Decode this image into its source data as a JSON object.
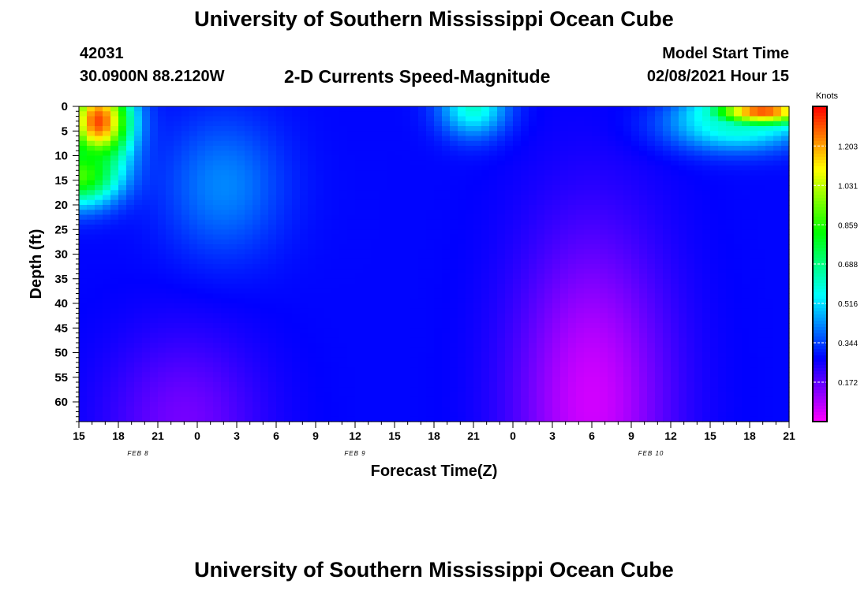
{
  "header": {
    "title": "University of Southern Mississippi Ocean Cube",
    "station": "42031",
    "coords": "30.0900N 88.2120W",
    "subtitle": "2-D Currents Speed-Magnitude",
    "model_start_label": "Model Start Time",
    "model_start_value": "02/08/2021 Hour 15"
  },
  "footer": {
    "title": "University of Southern Mississippi Ocean Cube"
  },
  "chart_data": {
    "type": "heatmap",
    "xlabel": "Forecast Time(Z)",
    "ylabel": "Depth (ft)",
    "x_tick_labels": [
      "15",
      "18",
      "21",
      "0",
      "3",
      "6",
      "9",
      "12",
      "15",
      "18",
      "21",
      "0",
      "3",
      "6",
      "9",
      "12",
      "15",
      "18",
      "21"
    ],
    "date_labels": [
      {
        "label": "FEB 8",
        "tick_index": 1.5
      },
      {
        "label": "FEB 9",
        "tick_index": 7
      },
      {
        "label": "FEB 10",
        "tick_index": 14.5
      }
    ],
    "x_range_hours": [
      0,
      54
    ],
    "y_ticks": [
      0,
      5,
      10,
      15,
      20,
      25,
      30,
      35,
      40,
      45,
      50,
      55,
      60
    ],
    "ylim": [
      0,
      64
    ],
    "y_inverted": true,
    "colorbar": {
      "title": "Knots",
      "tick_labels": [
        "1.203",
        "1.031",
        "0.859",
        "0.688",
        "0.516",
        "0.344",
        "0.172"
      ],
      "tick_values": [
        1.203,
        1.031,
        0.859,
        0.688,
        0.516,
        0.344,
        0.172
      ],
      "range": [
        0.0,
        1.376
      ],
      "colors": [
        "#ff00ff",
        "#0000ff",
        "#00ffff",
        "#00ff00",
        "#ffff00",
        "#ff0000"
      ]
    },
    "features": [
      {
        "hour": 1.5,
        "depth": 3,
        "speed": 1.3,
        "sx": 2.4,
        "sd": 8
      },
      {
        "hour": 0,
        "depth": 14,
        "speed": 0.9,
        "sx": 3,
        "sd": 6
      },
      {
        "hour": 11,
        "depth": 16,
        "speed": 0.42,
        "sx": 4.5,
        "sd": 14
      },
      {
        "hour": 30,
        "depth": 0,
        "speed": 0.6,
        "sx": 2.5,
        "sd": 6
      },
      {
        "hour": 52,
        "depth": 1,
        "speed": 1.3,
        "sx": 4,
        "sd": 3
      },
      {
        "hour": 50,
        "depth": 4,
        "speed": 0.6,
        "sx": 5,
        "sd": 5
      }
    ],
    "background_speed": 0.28,
    "low_zones": [
      {
        "hour": 39,
        "depth": 60,
        "speed": 0.05,
        "sx": 6,
        "sd": 35
      },
      {
        "hour": 8,
        "depth": 64,
        "speed": 0.15,
        "sx": 6,
        "sd": 18
      }
    ]
  }
}
